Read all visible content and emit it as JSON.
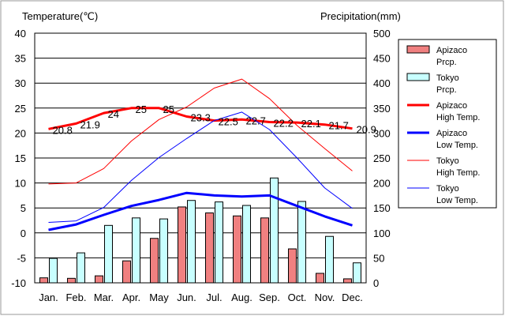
{
  "chart_data": {
    "type": "bar+line",
    "y1_title": "Temperature(℃)",
    "y2_title": "Precipitation(mm)",
    "categories": [
      "Jan.",
      "Feb.",
      "Mar.",
      "Apr.",
      "May",
      "Jun.",
      "Jul.",
      "Aug.",
      "Sep.",
      "Oct.",
      "Nov.",
      "Dec."
    ],
    "y1_range": [
      -10,
      40
    ],
    "y1_ticks": [
      "-10",
      "-5",
      "0",
      "5",
      "10",
      "15",
      "20",
      "25",
      "30",
      "35",
      "40"
    ],
    "y2_range": [
      0,
      500
    ],
    "y2_ticks": [
      "0",
      "50",
      "100",
      "150",
      "200",
      "250",
      "300",
      "350",
      "400",
      "450",
      "500"
    ],
    "grid": "horizontal",
    "legend_position": "right",
    "bar_series": [
      {
        "legend": [
          "Apizaco",
          "Prcp."
        ],
        "color": "#f08080",
        "axis": "right",
        "values": [
          10,
          9,
          14,
          44,
          89,
          152,
          140,
          134,
          130,
          68,
          19,
          8
        ]
      },
      {
        "legend": [
          "Tokyo",
          "Prcp."
        ],
        "color": "#c8ffff",
        "axis": "right",
        "values": [
          49,
          60,
          115,
          130,
          128,
          165,
          162,
          155,
          210,
          163,
          93,
          40
        ]
      }
    ],
    "line_series": [
      {
        "legend": [
          "Apizaco",
          "High Temp."
        ],
        "color": "#ff0000",
        "width": 3,
        "values": [
          20.8,
          21.9,
          24.0,
          25.0,
          25.0,
          23.3,
          22.5,
          22.7,
          22.2,
          22.1,
          21.7,
          20.9
        ]
      },
      {
        "legend": [
          "Apizaco",
          "Low Temp."
        ],
        "color": "#0000ff",
        "width": 3,
        "values": [
          0.6,
          1.7,
          3.6,
          5.4,
          6.6,
          8.0,
          7.5,
          7.3,
          7.5,
          5.4,
          3.3,
          1.5
        ]
      },
      {
        "legend": [
          "Tokyo",
          "High Temp."
        ],
        "color": "#ff0000",
        "width": 1,
        "values": [
          9.8,
          10.0,
          12.9,
          18.4,
          22.7,
          25.2,
          29.0,
          30.8,
          26.9,
          21.5,
          16.9,
          12.4
        ]
      },
      {
        "legend": [
          "Tokyo",
          "Low Temp."
        ],
        "color": "#0000ff",
        "width": 1,
        "values": [
          2.1,
          2.4,
          5.1,
          10.5,
          15.1,
          18.9,
          22.5,
          24.2,
          20.7,
          15.0,
          9.0,
          4.9
        ]
      }
    ],
    "data_labels": [
      "20.8",
      "21.9",
      "24",
      "25",
      "25",
      "23.3",
      "22.5",
      "22.7",
      "22.2",
      "22.1",
      "21.7",
      "20.9"
    ]
  }
}
